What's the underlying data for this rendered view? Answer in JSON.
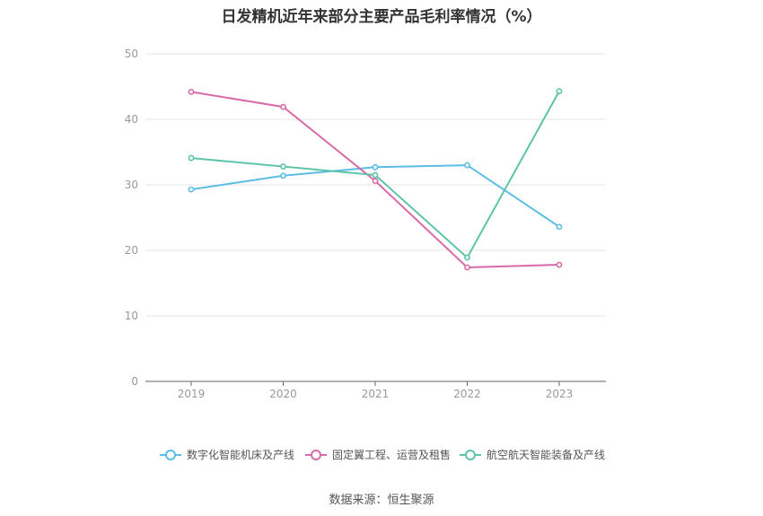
{
  "chart_data": {
    "type": "line",
    "title": "日发精机近年来部分主要产品毛利率情况（%）",
    "categories": [
      "2019",
      "2020",
      "2021",
      "2022",
      "2023"
    ],
    "ylim": [
      0,
      50
    ],
    "yticks": [
      "0",
      "10",
      "20",
      "30",
      "40",
      "50"
    ],
    "grid": true,
    "legend_position": "bottom",
    "series": [
      {
        "name": "数字化智能机床及产线",
        "color": "#5bbce4",
        "values": [
          29.3,
          31.4,
          32.7,
          33.0,
          23.6
        ]
      },
      {
        "name": "固定翼工程、运营及租售",
        "color": "#d96aa8",
        "values": [
          44.2,
          41.9,
          30.6,
          17.4,
          17.8
        ]
      },
      {
        "name": "航空航天智能装备及产线",
        "color": "#5cc4a8",
        "values": [
          34.1,
          32.8,
          31.5,
          18.9,
          44.3
        ]
      }
    ]
  },
  "source_text": "数据来源：恒生聚源"
}
